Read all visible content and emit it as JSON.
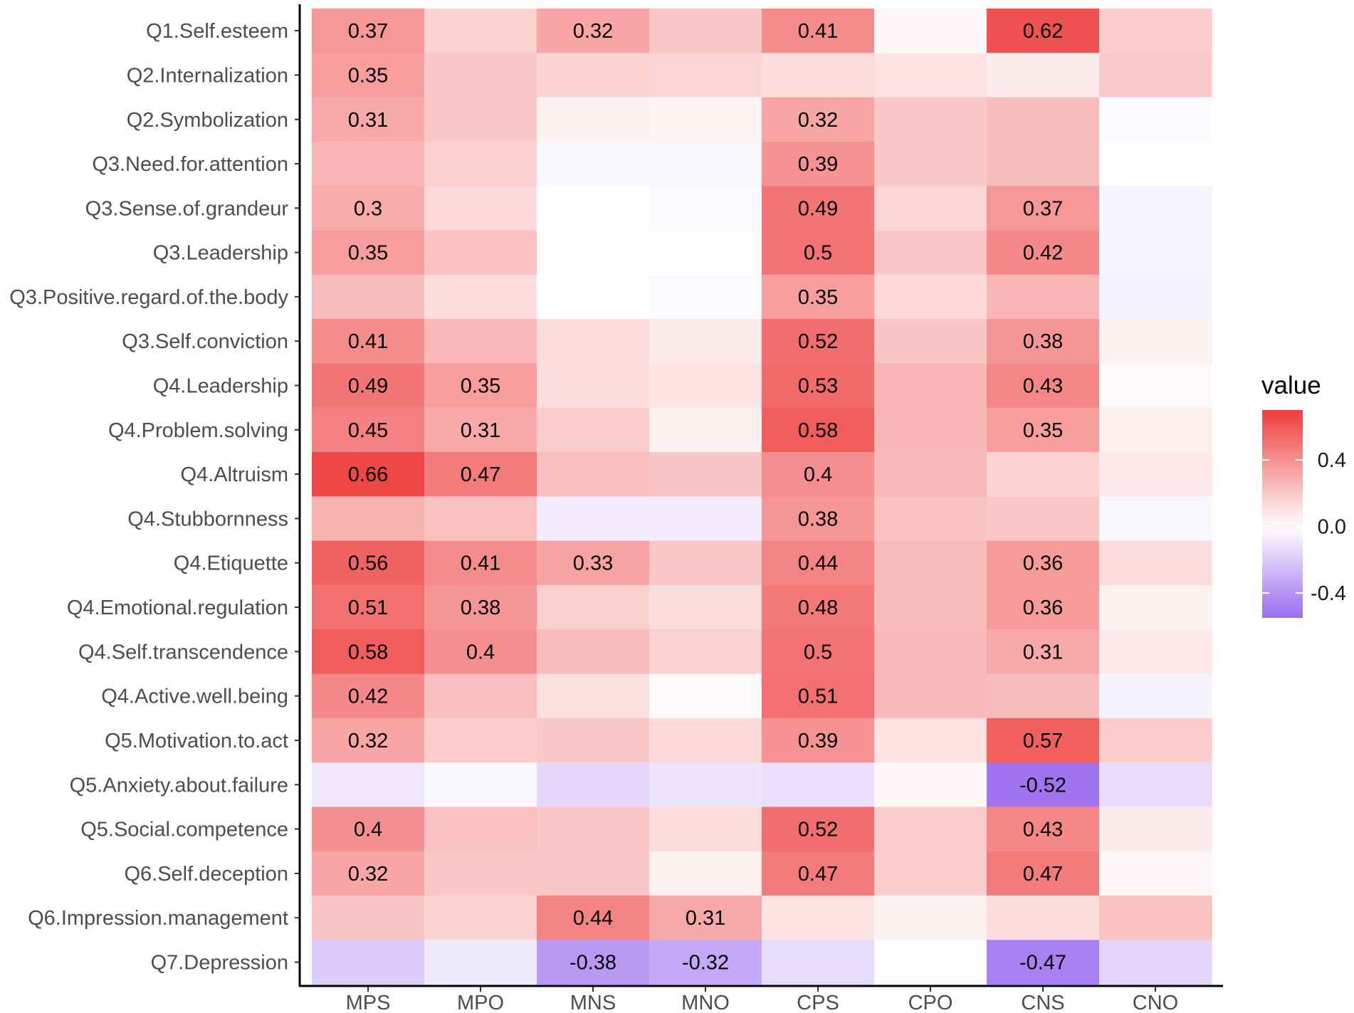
{
  "chart_data": {
    "type": "heatmap",
    "rows": [
      "Q1.Self.esteem",
      "Q2.Internalization",
      "Q2.Symbolization",
      "Q3.Need.for.attention",
      "Q3.Sense.of.grandeur",
      "Q3.Leadership",
      "Q3.Positive.regard.of.the.body",
      "Q3.Self.conviction",
      "Q4.Leadership",
      "Q4.Problem.solving",
      "Q4.Altruism",
      "Q4.Stubbornness",
      "Q4.Etiquette",
      "Q4.Emotional.regulation",
      "Q4.Self.transcendence",
      "Q4.Active.well.being",
      "Q5.Motivation.to.act",
      "Q5.Anxiety.about.failure",
      "Q5.Social.competence",
      "Q6.Self.deception",
      "Q6.Impression.management",
      "Q7.Depression"
    ],
    "columns": [
      "MPS",
      "MPO",
      "MNS",
      "MNO",
      "CPS",
      "CPO",
      "CNS",
      "CNO"
    ],
    "values": [
      [
        0.37,
        0.16,
        0.32,
        0.2,
        0.41,
        0.03,
        0.62,
        0.18
      ],
      [
        0.35,
        0.2,
        0.16,
        0.15,
        0.13,
        0.1,
        0.07,
        0.19
      ],
      [
        0.31,
        0.2,
        0.05,
        0.04,
        0.32,
        0.2,
        0.24,
        -0.02
      ],
      [
        0.26,
        0.17,
        -0.03,
        -0.03,
        0.39,
        0.2,
        0.24,
        0.0
      ],
      [
        0.3,
        0.14,
        0.0,
        -0.02,
        0.49,
        0.15,
        0.37,
        -0.04
      ],
      [
        0.35,
        0.22,
        0.01,
        0.0,
        0.5,
        0.2,
        0.42,
        -0.04
      ],
      [
        0.24,
        0.12,
        0.0,
        -0.02,
        0.35,
        0.14,
        0.26,
        -0.05
      ],
      [
        0.41,
        0.25,
        0.12,
        0.07,
        0.52,
        0.21,
        0.38,
        0.05
      ],
      [
        0.49,
        0.35,
        0.12,
        0.1,
        0.53,
        0.26,
        0.43,
        0.02
      ],
      [
        0.45,
        0.31,
        0.18,
        0.05,
        0.58,
        0.26,
        0.35,
        0.06
      ],
      [
        0.66,
        0.47,
        0.23,
        0.21,
        0.4,
        0.25,
        0.16,
        0.08
      ],
      [
        0.27,
        0.22,
        -0.07,
        -0.07,
        0.38,
        0.22,
        0.2,
        -0.03
      ],
      [
        0.56,
        0.41,
        0.33,
        0.2,
        0.44,
        0.24,
        0.36,
        0.12
      ],
      [
        0.51,
        0.38,
        0.17,
        0.12,
        0.48,
        0.24,
        0.36,
        0.05
      ],
      [
        0.58,
        0.4,
        0.24,
        0.16,
        0.5,
        0.25,
        0.31,
        0.08
      ],
      [
        0.42,
        0.23,
        0.11,
        0.02,
        0.51,
        0.25,
        0.24,
        -0.05
      ],
      [
        0.32,
        0.18,
        0.2,
        0.14,
        0.39,
        0.1,
        0.57,
        0.18
      ],
      [
        -0.09,
        -0.03,
        -0.15,
        -0.11,
        -0.12,
        0.03,
        -0.52,
        -0.13
      ],
      [
        0.4,
        0.22,
        0.2,
        0.12,
        0.52,
        0.18,
        0.43,
        0.07
      ],
      [
        0.32,
        0.2,
        0.2,
        0.05,
        0.47,
        0.18,
        0.47,
        0.03
      ],
      [
        0.21,
        0.16,
        0.44,
        0.31,
        0.1,
        0.05,
        0.12,
        0.22
      ],
      [
        -0.19,
        -0.08,
        -0.38,
        -0.32,
        -0.13,
        -0.01,
        -0.47,
        -0.16
      ]
    ],
    "cell_labels": [
      [
        "0.37",
        "",
        "0.32",
        "",
        "0.41",
        "",
        "0.62",
        ""
      ],
      [
        "0.35",
        "",
        "",
        "",
        "",
        "",
        "",
        ""
      ],
      [
        "0.31",
        "",
        "",
        "",
        "0.32",
        "",
        "",
        ""
      ],
      [
        "",
        "",
        "",
        "",
        "0.39",
        "",
        "",
        ""
      ],
      [
        "0.3",
        "",
        "",
        "",
        "0.49",
        "",
        "0.37",
        ""
      ],
      [
        "0.35",
        "",
        "",
        "",
        "0.5",
        "",
        "0.42",
        ""
      ],
      [
        "",
        "",
        "",
        "",
        "0.35",
        "",
        "",
        ""
      ],
      [
        "0.41",
        "",
        "",
        "",
        "0.52",
        "",
        "0.38",
        ""
      ],
      [
        "0.49",
        "0.35",
        "",
        "",
        "0.53",
        "",
        "0.43",
        ""
      ],
      [
        "0.45",
        "0.31",
        "",
        "",
        "0.58",
        "",
        "0.35",
        ""
      ],
      [
        "0.66",
        "0.47",
        "",
        "",
        "0.4",
        "",
        "",
        ""
      ],
      [
        "",
        "",
        "",
        "",
        "0.38",
        "",
        "",
        ""
      ],
      [
        "0.56",
        "0.41",
        "0.33",
        "",
        "0.44",
        "",
        "0.36",
        ""
      ],
      [
        "0.51",
        "0.38",
        "",
        "",
        "0.48",
        "",
        "0.36",
        ""
      ],
      [
        "0.58",
        "0.4",
        "",
        "",
        "0.5",
        "",
        "0.31",
        ""
      ],
      [
        "0.42",
        "",
        "",
        "",
        "0.51",
        "",
        "",
        ""
      ],
      [
        "0.32",
        "",
        "",
        "",
        "0.39",
        "",
        "0.57",
        ""
      ],
      [
        "",
        "",
        "",
        "",
        "",
        "",
        "-0.52",
        ""
      ],
      [
        "0.4",
        "",
        "",
        "",
        "0.52",
        "",
        "0.43",
        ""
      ],
      [
        "0.32",
        "",
        "",
        "",
        "0.47",
        "",
        "0.47",
        ""
      ],
      [
        "",
        "",
        "0.44",
        "0.31",
        "",
        "",
        "",
        ""
      ],
      [
        "",
        "",
        "-0.38",
        "-0.32",
        "",
        "",
        "-0.47",
        ""
      ]
    ],
    "color_scale": {
      "low": "#9b6cf0",
      "mid": "#ffffff",
      "high": "#ee3b3b",
      "limits": [
        -0.55,
        0.7
      ],
      "midpoint": 0.0
    },
    "legend": {
      "title": "value",
      "ticks": [
        0.4,
        0.0,
        -0.4
      ],
      "tick_labels": [
        "0.4",
        "0.0",
        "-0.4"
      ],
      "placement": "right"
    },
    "title": "",
    "xlabel": "",
    "ylabel": ""
  }
}
